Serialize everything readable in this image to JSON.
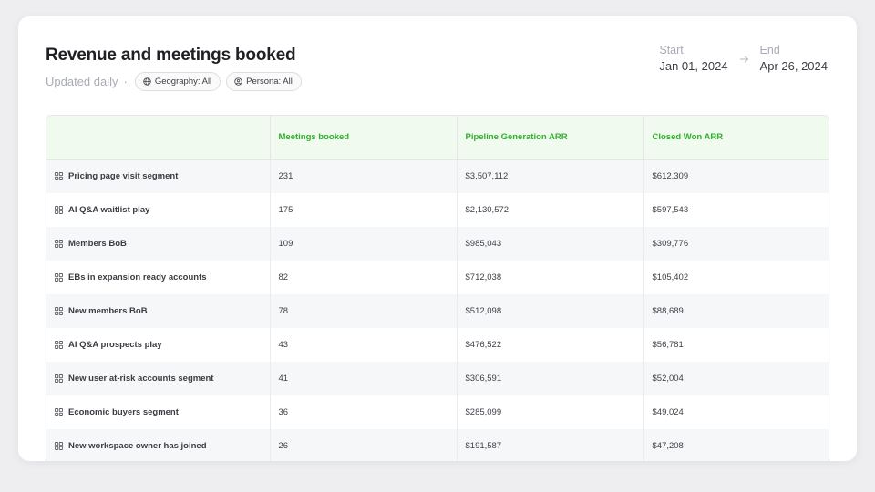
{
  "header": {
    "title": "Revenue and meetings booked",
    "updated": "Updated daily",
    "separator": "·",
    "filters": [
      {
        "icon": "globe-icon",
        "label": "Geography: All"
      },
      {
        "icon": "user-circle-icon",
        "label": "Persona: All"
      }
    ]
  },
  "date_range": {
    "start_label": "Start",
    "start_value": "Jan 01, 2024",
    "end_label": "End",
    "end_value": "Apr 26, 2024"
  },
  "table": {
    "columns": [
      "",
      "Meetings booked",
      "Pipeline Generation ARR",
      "Closed Won ARR"
    ],
    "rows": [
      {
        "name": "Pricing page visit segment",
        "meetings": "231",
        "pipeline": "$3,507,112",
        "closed": "$612,309"
      },
      {
        "name": "AI Q&A waitlist play",
        "meetings": "175",
        "pipeline": "$2,130,572",
        "closed": "$597,543"
      },
      {
        "name": "Members BoB",
        "meetings": "109",
        "pipeline": "$985,043",
        "closed": "$309,776"
      },
      {
        "name": "EBs in expansion ready accounts",
        "meetings": "82",
        "pipeline": "$712,038",
        "closed": "$105,402"
      },
      {
        "name": "New members BoB",
        "meetings": "78",
        "pipeline": "$512,098",
        "closed": "$88,689"
      },
      {
        "name": "AI Q&A prospects play",
        "meetings": "43",
        "pipeline": "$476,522",
        "closed": "$56,781"
      },
      {
        "name": "New user at-risk accounts segment",
        "meetings": "41",
        "pipeline": "$306,591",
        "closed": "$52,004"
      },
      {
        "name": "Economic buyers segment",
        "meetings": "36",
        "pipeline": "$285,099",
        "closed": "$49,024"
      },
      {
        "name": "New workspace owner has joined",
        "meetings": "26",
        "pipeline": "$191,587",
        "closed": "$47,208"
      }
    ]
  },
  "colors": {
    "accent_green": "#2fb02c",
    "header_bg": "#f1faef",
    "muted_text": "#a9acb6"
  }
}
